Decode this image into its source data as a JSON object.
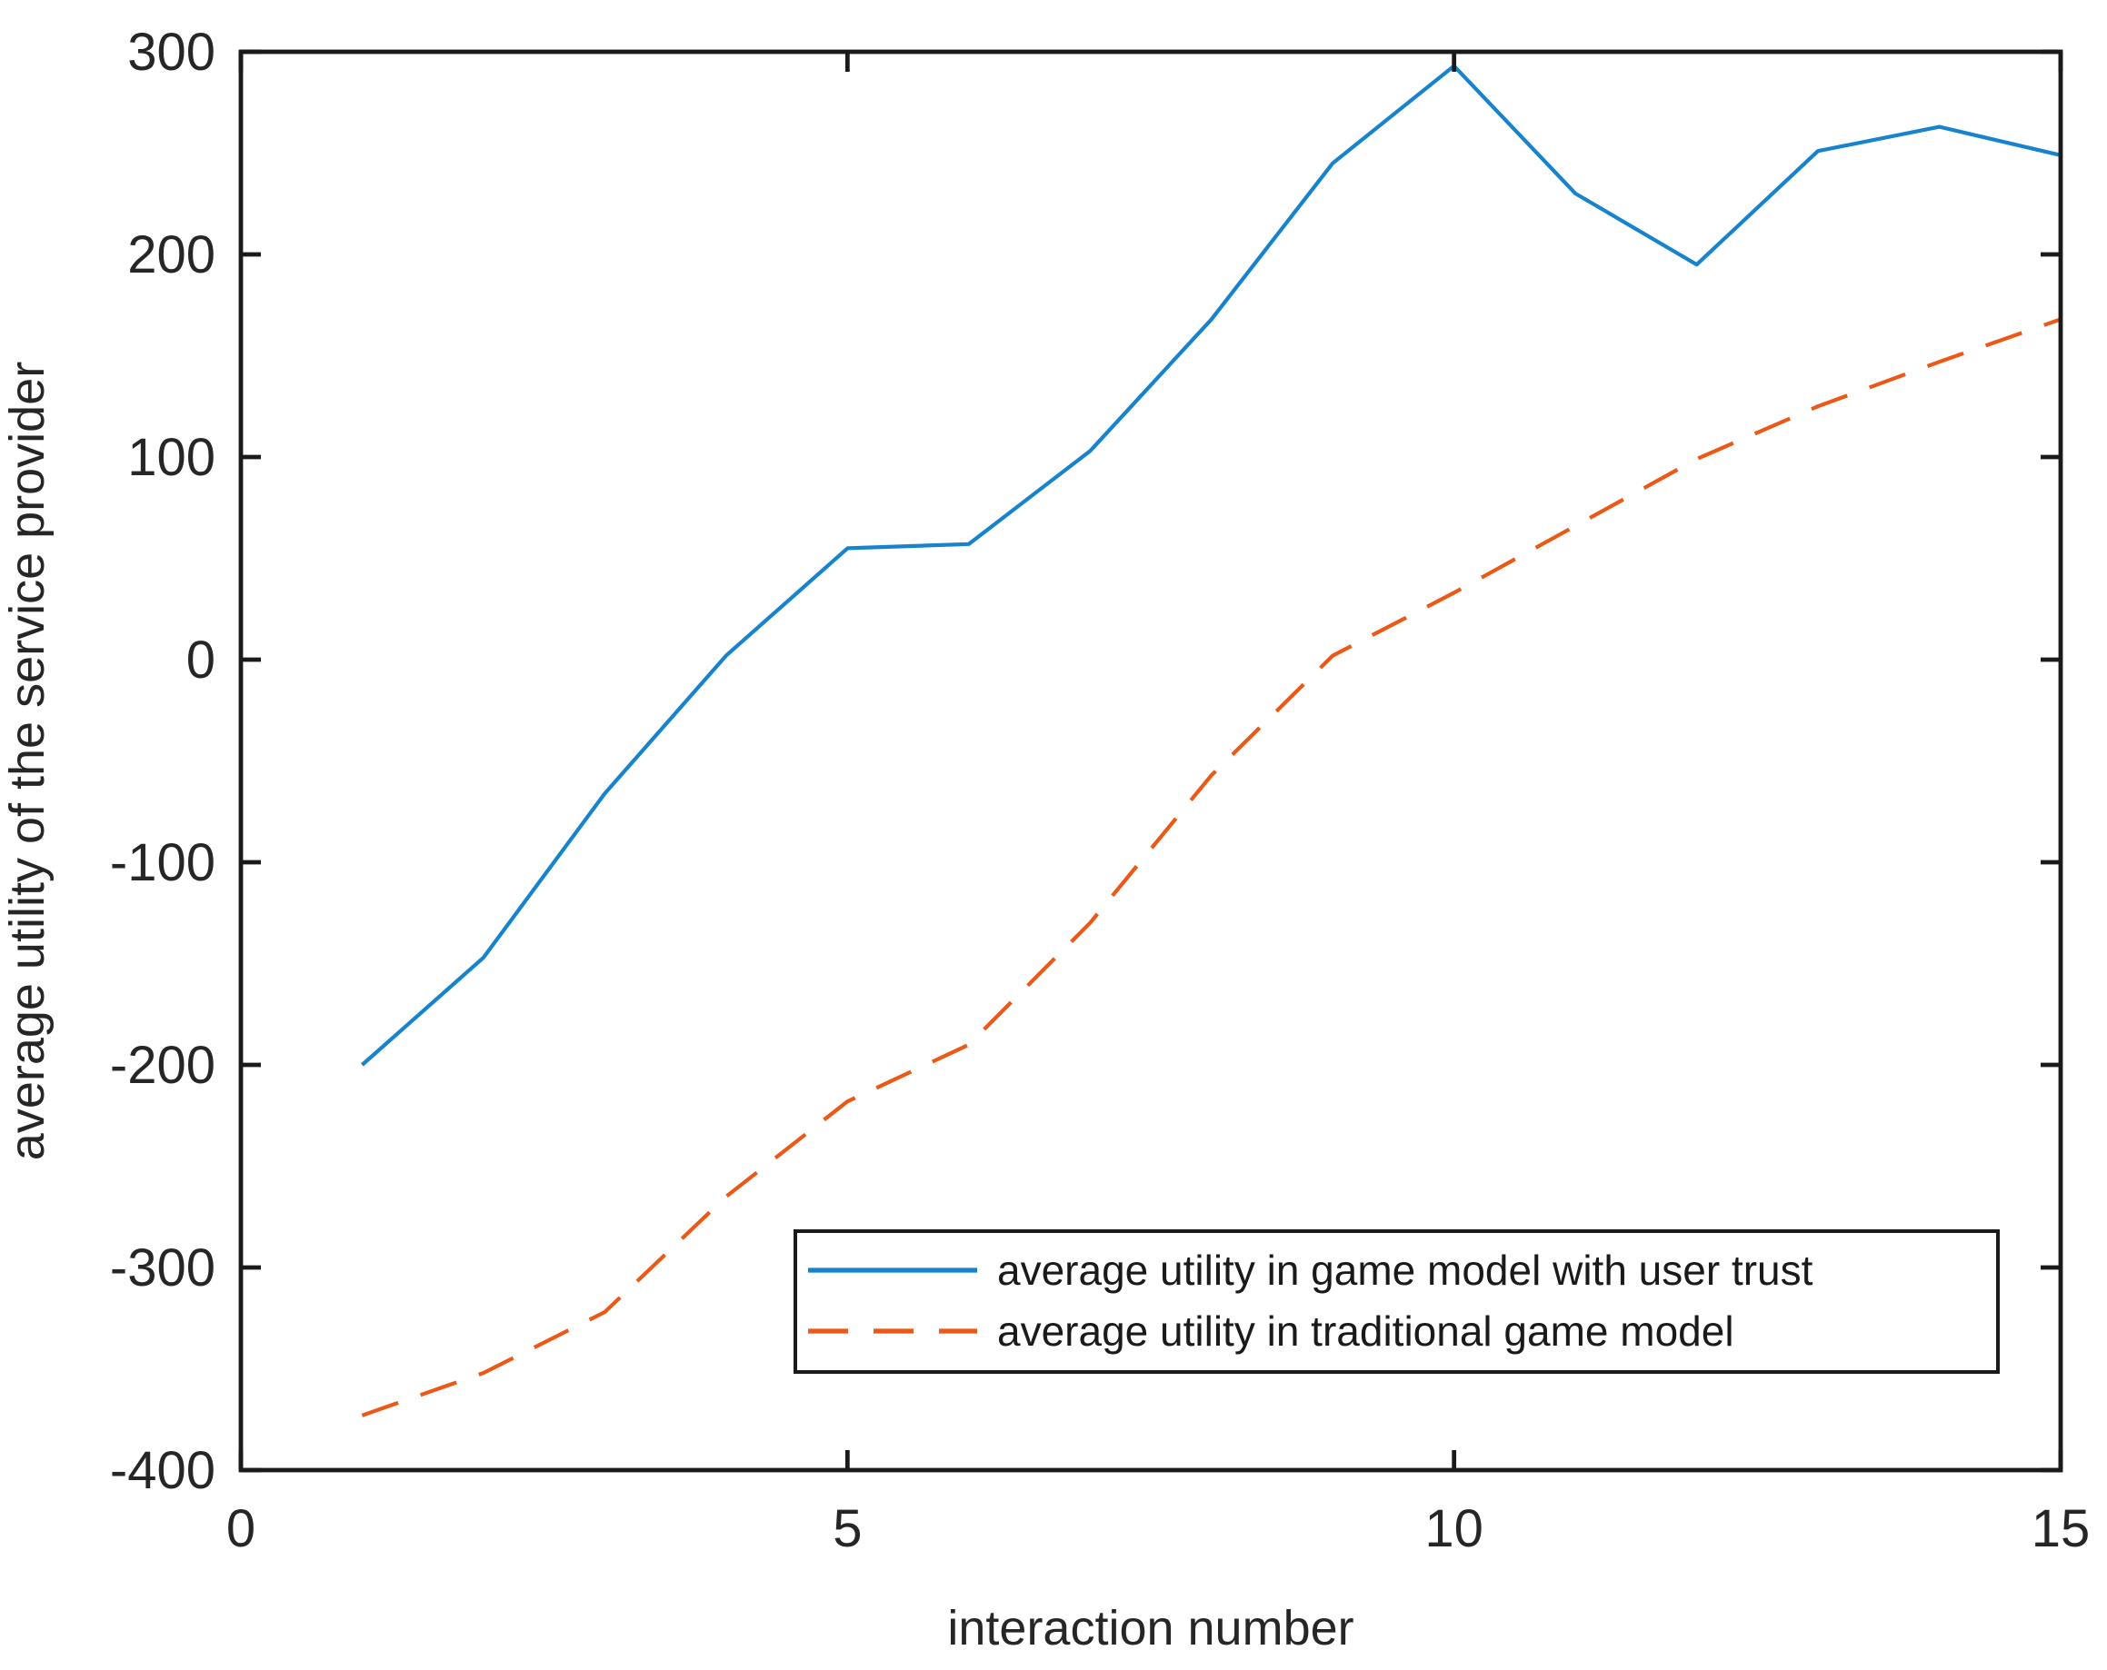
{
  "chart_data": {
    "type": "line",
    "title": "",
    "xlabel": "interaction number",
    "ylabel": "average utility of the service provider",
    "x": [
      1,
      2,
      3,
      4,
      5,
      6,
      7,
      8,
      9,
      10,
      11,
      12,
      13,
      14,
      15
    ],
    "series": [
      {
        "name": "average utility in game model with user trust",
        "style": "solid",
        "color": "#1783cc",
        "values": [
          -200,
          -147,
          -66,
          2,
          55,
          57,
          103,
          168,
          245,
          293,
          230,
          195,
          251,
          263,
          249
        ]
      },
      {
        "name": "average utility in traditional game model",
        "style": "dashed",
        "color": "#ec5815",
        "values": [
          -373,
          -352,
          -322,
          -265,
          -218,
          -190,
          -130,
          -57,
          2,
          33,
          66,
          99,
          125,
          147,
          168
        ]
      }
    ],
    "xlim": [
      0,
      15
    ],
    "ylim": [
      -400,
      300
    ],
    "x_ticks": [
      0,
      5,
      10,
      15
    ],
    "y_ticks": [
      -400,
      -300,
      -200,
      -100,
      0,
      100,
      200,
      300
    ],
    "grid": false,
    "legend_position": "inside-lower-right",
    "axis_color": "#1a1a1a",
    "background_color": "#ffffff"
  }
}
